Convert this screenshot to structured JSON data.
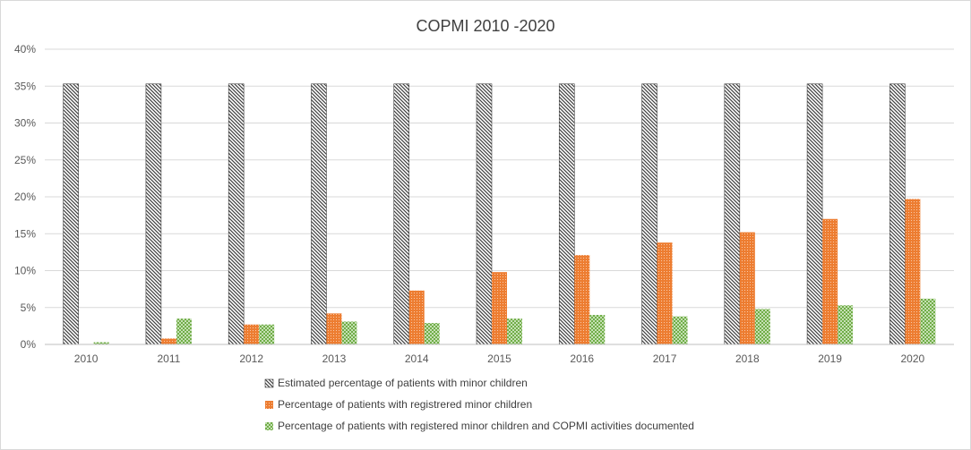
{
  "chart_data": {
    "type": "bar",
    "title": "COPMI 2010 -2020",
    "categories": [
      "2010",
      "2011",
      "2012",
      "2013",
      "2014",
      "2015",
      "2016",
      "2017",
      "2018",
      "2019",
      "2020"
    ],
    "yticks": [
      "0%",
      "5%",
      "10%",
      "15%",
      "20%",
      "25%",
      "30%",
      "35%",
      "40%"
    ],
    "ylim": [
      0,
      40
    ],
    "xlabel": "",
    "ylabel": "",
    "grid": true,
    "legend_position": "bottom",
    "series": [
      {
        "name": "Estimated percentage of patients with minor children",
        "color": "#404040",
        "pattern": "diagonal-hatch",
        "values": [
          35.3,
          35.3,
          35.3,
          35.3,
          35.3,
          35.3,
          35.3,
          35.3,
          35.3,
          35.3,
          35.3
        ]
      },
      {
        "name": "Percentage of patients with registrered minor children",
        "color": "#ED7D31",
        "pattern": "dotted",
        "values": [
          0,
          0.8,
          2.7,
          4.2,
          7.3,
          9.8,
          12.1,
          13.8,
          15.2,
          17.0,
          19.7
        ]
      },
      {
        "name": "Percentage of patients with registered minor children and COPMI activities documented",
        "color": "#70AD47",
        "pattern": "checker",
        "values": [
          0.3,
          3.5,
          2.7,
          3.1,
          2.9,
          3.5,
          4.0,
          3.8,
          4.8,
          5.3,
          6.2
        ]
      }
    ]
  }
}
